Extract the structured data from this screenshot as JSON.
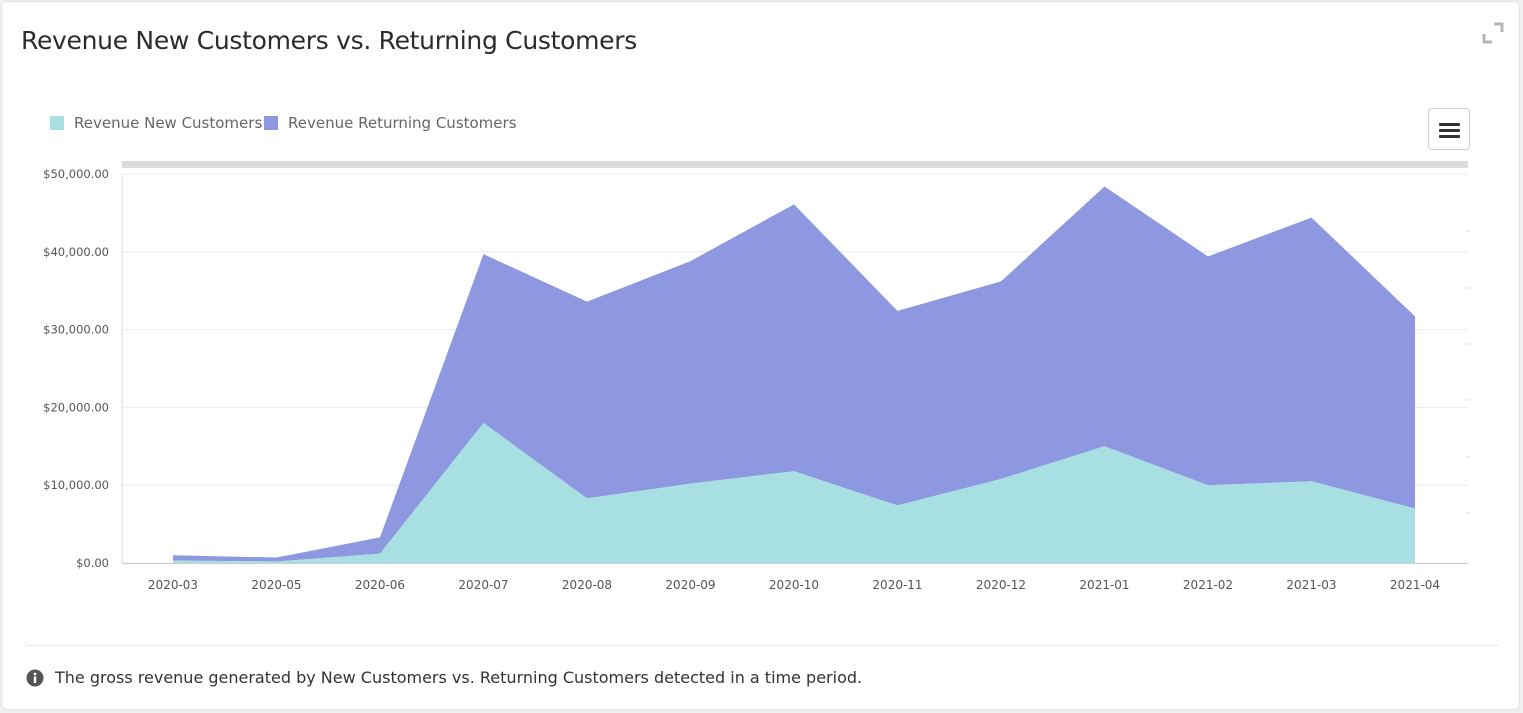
{
  "header": {
    "title": "Revenue New Customers vs. Returning Customers",
    "expand_icon": "expand-icon"
  },
  "toolbar": {
    "menu_icon": "hamburger-menu-icon"
  },
  "legend": {
    "items": [
      {
        "label": "Revenue New Customers",
        "color": "#a8dfe2"
      },
      {
        "label": "Revenue Returning Customers",
        "color": "#8d98e0"
      }
    ]
  },
  "footer": {
    "info_icon": "info-icon",
    "text": "The gross revenue generated by New Customers vs. Returning Customers detected in a time period."
  },
  "chart_data": {
    "type": "area",
    "stacked": true,
    "categories": [
      "2020-03",
      "2020-05",
      "2020-06",
      "2020-07",
      "2020-08",
      "2020-09",
      "2020-10",
      "2020-11",
      "2020-12",
      "2021-01",
      "2021-02",
      "2021-03",
      "2021-04"
    ],
    "series": [
      {
        "name": "Revenue New Customers",
        "color": "#a8dfe2",
        "values": [
          300,
          200,
          1200,
          18000,
          8300,
          10200,
          11800,
          7400,
          10800,
          15000,
          10000,
          10500,
          7000
        ]
      },
      {
        "name": "Revenue Returning Customers",
        "color": "#8d98e0",
        "values": [
          700,
          500,
          2100,
          21700,
          25300,
          28600,
          34300,
          25000,
          25400,
          33400,
          29400,
          33900,
          24700
        ]
      }
    ],
    "ylim": [
      0,
      50000
    ],
    "yticks": [
      0,
      10000,
      20000,
      30000,
      40000,
      50000
    ],
    "ytick_labels": [
      "$0.00",
      "$10,000.00",
      "$20,000.00",
      "$30,000.00",
      "$40,000.00",
      "$50,000.00"
    ],
    "grid": true,
    "legend_position": "top-left"
  }
}
